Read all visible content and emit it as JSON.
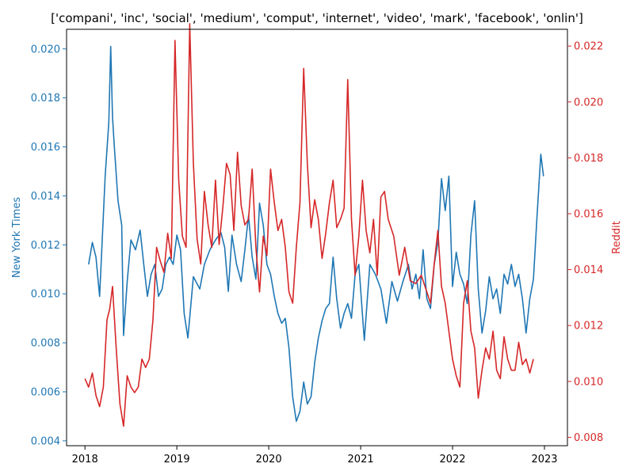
{
  "chart_data": {
    "type": "line",
    "title": "['compani', 'inc', 'social', 'medium', 'comput', 'internet', 'video', 'mark', 'facebook', 'onlin']",
    "x_ticks": [
      "2018",
      "2019",
      "2020",
      "2021",
      "2022",
      "2023"
    ],
    "xlim": [
      2017.8,
      2023.25
    ],
    "left_axis": {
      "label": "New York Times",
      "color": "#1f77b4",
      "ylim": [
        0.0038,
        0.0208
      ],
      "ticks": [
        "0.004",
        "0.006",
        "0.008",
        "0.010",
        "0.012",
        "0.014",
        "0.016",
        "0.018",
        "0.020"
      ]
    },
    "right_axis": {
      "label": "Reddit",
      "color": "#d62728",
      "ylim": [
        0.0077,
        0.0226
      ],
      "ticks": [
        "0.008",
        "0.010",
        "0.012",
        "0.014",
        "0.016",
        "0.018",
        "0.020",
        "0.022"
      ]
    },
    "series": [
      {
        "name": "New York Times",
        "axis": "left",
        "color": "#1f77b4",
        "x": [
          2018.04,
          2018.08,
          2018.12,
          2018.16,
          2018.22,
          2018.26,
          2018.28,
          2018.3,
          2018.32,
          2018.36,
          2018.4,
          2018.42,
          2018.46,
          2018.5,
          2018.55,
          2018.6,
          2018.64,
          2018.68,
          2018.72,
          2018.76,
          2018.8,
          2018.84,
          2018.88,
          2018.92,
          2018.96,
          2019.0,
          2019.04,
          2019.08,
          2019.12,
          2019.18,
          2019.25,
          2019.3,
          2019.36,
          2019.42,
          2019.48,
          2019.52,
          2019.56,
          2019.6,
          2019.65,
          2019.7,
          2019.74,
          2019.78,
          2019.82,
          2019.86,
          2019.9,
          2019.94,
          2019.98,
          2020.02,
          2020.06,
          2020.1,
          2020.14,
          2020.18,
          2020.22,
          2020.26,
          2020.3,
          2020.34,
          2020.38,
          2020.42,
          2020.46,
          2020.5,
          2020.54,
          2020.58,
          2020.62,
          2020.66,
          2020.7,
          2020.74,
          2020.78,
          2020.82,
          2020.86,
          2020.9,
          2020.94,
          2020.98,
          2021.04,
          2021.1,
          2021.16,
          2021.22,
          2021.28,
          2021.34,
          2021.4,
          2021.46,
          2021.52,
          2021.56,
          2021.6,
          2021.64,
          2021.68,
          2021.72,
          2021.76,
          2021.8,
          2021.84,
          2021.88,
          2021.92,
          2021.96,
          2022.0,
          2022.04,
          2022.08,
          2022.12,
          2022.16,
          2022.2,
          2022.24,
          2022.28,
          2022.32,
          2022.36,
          2022.4,
          2022.44,
          2022.48,
          2022.52,
          2022.56,
          2022.6,
          2022.64,
          2022.68,
          2022.72,
          2022.76,
          2022.8,
          2022.84,
          2022.88,
          2022.92,
          2022.96,
          2022.99
        ],
        "values": [
          0.0112,
          0.0121,
          0.0115,
          0.0099,
          0.0148,
          0.017,
          0.0201,
          0.0172,
          0.016,
          0.0138,
          0.0128,
          0.0083,
          0.0105,
          0.0122,
          0.0118,
          0.0126,
          0.0112,
          0.0099,
          0.0108,
          0.0112,
          0.0099,
          0.0102,
          0.0112,
          0.0115,
          0.0112,
          0.0124,
          0.0118,
          0.0092,
          0.0082,
          0.0107,
          0.0102,
          0.0112,
          0.0118,
          0.0122,
          0.0125,
          0.0119,
          0.0101,
          0.0124,
          0.0112,
          0.0105,
          0.0118,
          0.0132,
          0.0115,
          0.0106,
          0.0137,
          0.0128,
          0.0112,
          0.0108,
          0.0099,
          0.0092,
          0.0088,
          0.009,
          0.0078,
          0.0058,
          0.0048,
          0.0052,
          0.0064,
          0.0055,
          0.0058,
          0.0072,
          0.0082,
          0.0089,
          0.0094,
          0.0096,
          0.0115,
          0.0098,
          0.0086,
          0.0092,
          0.0096,
          0.009,
          0.0108,
          0.0112,
          0.0081,
          0.0112,
          0.0108,
          0.0102,
          0.0088,
          0.0105,
          0.0097,
          0.0105,
          0.0112,
          0.0102,
          0.0108,
          0.0098,
          0.0118,
          0.0098,
          0.0094,
          0.0112,
          0.0121,
          0.0147,
          0.0134,
          0.0148,
          0.0103,
          0.0117,
          0.0108,
          0.0104,
          0.0096,
          0.0124,
          0.0138,
          0.0102,
          0.0084,
          0.0093,
          0.0107,
          0.0098,
          0.0102,
          0.0092,
          0.0108,
          0.0104,
          0.0112,
          0.0103,
          0.0108,
          0.0098,
          0.0084,
          0.0098,
          0.0106,
          0.0132,
          0.0157,
          0.0148
        ]
      },
      {
        "name": "Reddit",
        "axis": "right",
        "color": "#d62728",
        "x": [
          2018.0,
          2018.04,
          2018.08,
          2018.12,
          2018.16,
          2018.2,
          2018.24,
          2018.27,
          2018.3,
          2018.34,
          2018.38,
          2018.42,
          2018.46,
          2018.5,
          2018.54,
          2018.58,
          2018.62,
          2018.66,
          2018.7,
          2018.74,
          2018.78,
          2018.82,
          2018.86,
          2018.9,
          2018.94,
          2018.98,
          2019.02,
          2019.06,
          2019.1,
          2019.14,
          2019.18,
          2019.22,
          2019.26,
          2019.3,
          2019.34,
          2019.38,
          2019.42,
          2019.46,
          2019.5,
          2019.54,
          2019.58,
          2019.62,
          2019.66,
          2019.7,
          2019.74,
          2019.78,
          2019.82,
          2019.86,
          2019.9,
          2019.94,
          2019.98,
          2020.02,
          2020.06,
          2020.1,
          2020.14,
          2020.18,
          2020.22,
          2020.26,
          2020.3,
          2020.34,
          2020.38,
          2020.42,
          2020.46,
          2020.5,
          2020.54,
          2020.58,
          2020.62,
          2020.66,
          2020.7,
          2020.74,
          2020.78,
          2020.82,
          2020.86,
          2020.9,
          2020.94,
          2020.98,
          2021.02,
          2021.06,
          2021.1,
          2021.14,
          2021.18,
          2021.22,
          2021.26,
          2021.3,
          2021.36,
          2021.42,
          2021.48,
          2021.54,
          2021.6,
          2021.66,
          2021.72,
          2021.76,
          2021.8,
          2021.84,
          2021.88,
          2021.92,
          2021.96,
          2022.0,
          2022.04,
          2022.08,
          2022.12,
          2022.16,
          2022.2,
          2022.24,
          2022.28,
          2022.32,
          2022.36,
          2022.4,
          2022.44,
          2022.48,
          2022.52,
          2022.56,
          2022.6,
          2022.64,
          2022.68,
          2022.72,
          2022.76,
          2022.8,
          2022.84,
          2022.88
        ],
        "values": [
          0.0101,
          0.0098,
          0.0103,
          0.0095,
          0.0091,
          0.0098,
          0.0122,
          0.0126,
          0.0134,
          0.0112,
          0.0092,
          0.0084,
          0.0102,
          0.0098,
          0.0096,
          0.0098,
          0.0108,
          0.0105,
          0.0108,
          0.0122,
          0.0148,
          0.0143,
          0.0139,
          0.0153,
          0.0144,
          0.0222,
          0.0172,
          0.0152,
          0.0148,
          0.0228,
          0.0178,
          0.0151,
          0.0142,
          0.0168,
          0.0156,
          0.0148,
          0.0172,
          0.0149,
          0.0162,
          0.0178,
          0.0174,
          0.0154,
          0.0182,
          0.0163,
          0.0156,
          0.0158,
          0.0176,
          0.0148,
          0.0132,
          0.0152,
          0.0145,
          0.0176,
          0.0164,
          0.0154,
          0.0158,
          0.0148,
          0.0132,
          0.0128,
          0.0148,
          0.0164,
          0.0212,
          0.0178,
          0.0155,
          0.0165,
          0.0158,
          0.0144,
          0.0153,
          0.0164,
          0.0172,
          0.0155,
          0.0158,
          0.0162,
          0.0208,
          0.0158,
          0.0138,
          0.0152,
          0.0172,
          0.0154,
          0.0146,
          0.0158,
          0.0138,
          0.0166,
          0.0168,
          0.0158,
          0.0152,
          0.0138,
          0.0148,
          0.0136,
          0.0135,
          0.0138,
          0.0132,
          0.0128,
          0.0142,
          0.0154,
          0.0134,
          0.0128,
          0.0118,
          0.0108,
          0.0102,
          0.0098,
          0.0128,
          0.0136,
          0.0118,
          0.0112,
          0.0094,
          0.0104,
          0.0112,
          0.0108,
          0.0118,
          0.0104,
          0.0101,
          0.0116,
          0.0108,
          0.0104,
          0.0104,
          0.0114,
          0.0106,
          0.0108,
          0.0103,
          0.0108
        ]
      }
    ]
  }
}
